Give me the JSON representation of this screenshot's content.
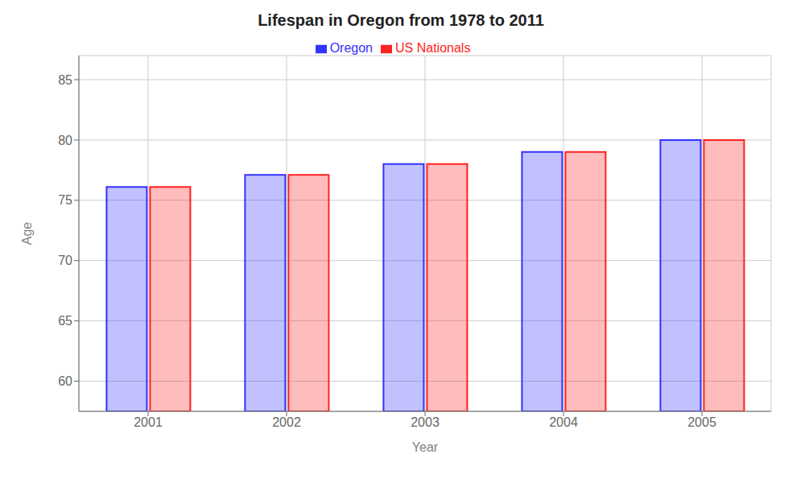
{
  "chart_data": {
    "type": "bar",
    "title": "Lifespan in Oregon from 1978 to 2011",
    "x_label": "Year",
    "y_label": "Age",
    "categories": [
      "2001",
      "2002",
      "2003",
      "2004",
      "2005"
    ],
    "series": [
      {
        "name": "Oregon",
        "color": "#3333ff",
        "values": [
          76.1,
          77.1,
          78.0,
          79.0,
          80.0
        ]
      },
      {
        "name": "US Nationals",
        "color": "#ff2222",
        "values": [
          76.1,
          77.1,
          78.0,
          79.0,
          80.0
        ]
      }
    ],
    "ylim": [
      57.5,
      87
    ],
    "yticks": [
      60,
      65,
      70,
      75,
      80,
      85
    ],
    "grid": true,
    "legend": "top"
  }
}
